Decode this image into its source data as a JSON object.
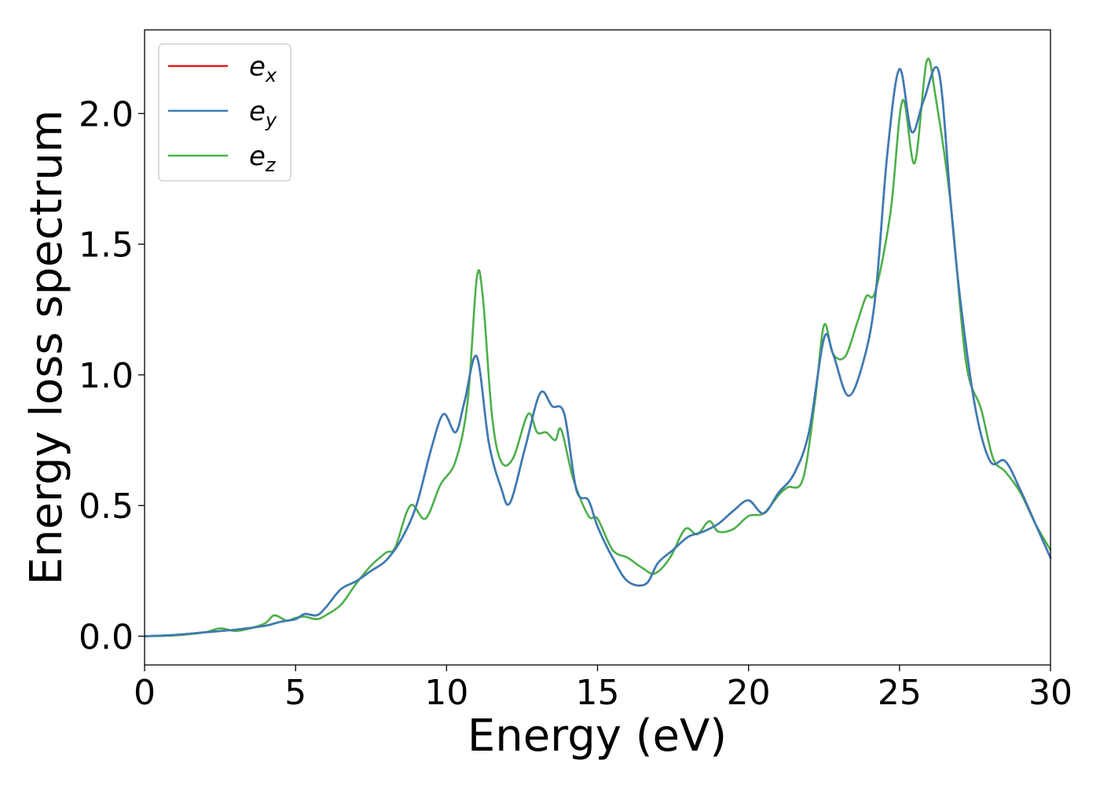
{
  "chart_data": {
    "type": "line",
    "xlabel": "Energy (eV)",
    "ylabel": "Energy loss spectrum",
    "xlim": [
      0,
      30
    ],
    "ylim": [
      -0.11,
      2.32
    ],
    "xticks": [
      0,
      5,
      10,
      15,
      20,
      25,
      30
    ],
    "xtick_labels": [
      "0",
      "5",
      "10",
      "15",
      "20",
      "25",
      "30"
    ],
    "yticks": [
      0.0,
      0.5,
      1.0,
      1.5,
      2.0
    ],
    "ytick_labels": [
      "0.0",
      "0.5",
      "1.0",
      "1.5",
      "2.0"
    ],
    "grid": false,
    "legend_position": "top-left",
    "series": [
      {
        "name": "e_x",
        "legend_main": "e",
        "legend_sub": "x",
        "color": "#e41a1c",
        "x": [
          0,
          1,
          2,
          3,
          4,
          4.5,
          5,
          5.3,
          5.7,
          6,
          6.5,
          7,
          7.5,
          8,
          8.5,
          9,
          9.5,
          9.9,
          10.3,
          10.6,
          11,
          11.4,
          11.8,
          12.1,
          12.6,
          13.1,
          13.5,
          13.9,
          14.3,
          14.7,
          15,
          15.5,
          16,
          16.6,
          17,
          17.5,
          18,
          18.5,
          19,
          19.5,
          20,
          20.5,
          21,
          21.5,
          22,
          22.5,
          22.8,
          23.3,
          23.8,
          24.2,
          24.6,
          25,
          25.4,
          25.8,
          26.3,
          26.7,
          27,
          27.5,
          28,
          28.5,
          29,
          29.5,
          30
        ],
        "y": [
          0,
          0.005,
          0.015,
          0.025,
          0.04,
          0.055,
          0.065,
          0.085,
          0.08,
          0.11,
          0.18,
          0.21,
          0.25,
          0.29,
          0.37,
          0.5,
          0.72,
          0.85,
          0.78,
          0.9,
          1.07,
          0.74,
          0.57,
          0.51,
          0.72,
          0.93,
          0.88,
          0.85,
          0.56,
          0.52,
          0.42,
          0.3,
          0.21,
          0.2,
          0.28,
          0.33,
          0.38,
          0.4,
          0.43,
          0.48,
          0.52,
          0.47,
          0.55,
          0.62,
          0.78,
          1.14,
          1.08,
          0.92,
          1.05,
          1.3,
          1.85,
          2.17,
          1.93,
          2.05,
          2.16,
          1.65,
          1.3,
          0.88,
          0.67,
          0.67,
          0.56,
          0.43,
          0.3
        ]
      },
      {
        "name": "e_y",
        "legend_main": "e",
        "legend_sub": "y",
        "color": "#377eb8",
        "x": [
          0,
          1,
          2,
          3,
          4,
          4.5,
          5,
          5.3,
          5.7,
          6,
          6.5,
          7,
          7.5,
          8,
          8.5,
          9,
          9.5,
          9.9,
          10.3,
          10.6,
          11,
          11.4,
          11.8,
          12.1,
          12.6,
          13.1,
          13.5,
          13.9,
          14.3,
          14.7,
          15,
          15.5,
          16,
          16.6,
          17,
          17.5,
          18,
          18.5,
          19,
          19.5,
          20,
          20.5,
          21,
          21.5,
          22,
          22.5,
          22.8,
          23.3,
          23.8,
          24.2,
          24.6,
          25,
          25.4,
          25.8,
          26.3,
          26.7,
          27,
          27.5,
          28,
          28.5,
          29,
          29.5,
          30
        ],
        "y": [
          0,
          0.005,
          0.015,
          0.025,
          0.04,
          0.055,
          0.065,
          0.085,
          0.08,
          0.11,
          0.18,
          0.21,
          0.25,
          0.29,
          0.37,
          0.5,
          0.72,
          0.85,
          0.78,
          0.9,
          1.07,
          0.74,
          0.57,
          0.51,
          0.72,
          0.93,
          0.88,
          0.85,
          0.56,
          0.52,
          0.42,
          0.3,
          0.21,
          0.2,
          0.28,
          0.33,
          0.38,
          0.4,
          0.43,
          0.48,
          0.52,
          0.47,
          0.55,
          0.62,
          0.78,
          1.14,
          1.08,
          0.92,
          1.05,
          1.3,
          1.85,
          2.17,
          1.93,
          2.05,
          2.16,
          1.65,
          1.3,
          0.88,
          0.67,
          0.67,
          0.56,
          0.43,
          0.3
        ]
      },
      {
        "name": "e_z",
        "legend_main": "e",
        "legend_sub": "z",
        "color": "#4daf4a",
        "x": [
          0,
          1,
          2,
          2.5,
          3,
          3.5,
          4,
          4.3,
          4.7,
          5,
          5.3,
          5.7,
          6,
          6.5,
          7,
          7.5,
          8,
          8.3,
          8.8,
          9.3,
          9.8,
          10.3,
          10.7,
          11,
          11.2,
          11.5,
          11.8,
          12.2,
          12.7,
          13,
          13.3,
          13.6,
          13.8,
          14.2,
          14.7,
          15,
          15.5,
          16,
          16.5,
          16.9,
          17.4,
          17.9,
          18.3,
          18.7,
          19,
          19.5,
          20,
          20.5,
          21,
          21.3,
          21.8,
          22.2,
          22.5,
          22.8,
          23.2,
          23.6,
          23.9,
          24.2,
          24.7,
          25.1,
          25.5,
          25.9,
          26.2,
          26.7,
          27.2,
          27.7,
          28.1,
          28.5,
          29,
          29.5,
          30
        ],
        "y": [
          0,
          0.003,
          0.015,
          0.03,
          0.02,
          0.03,
          0.05,
          0.08,
          0.06,
          0.07,
          0.075,
          0.065,
          0.08,
          0.12,
          0.2,
          0.27,
          0.32,
          0.34,
          0.5,
          0.45,
          0.58,
          0.67,
          0.9,
          1.37,
          1.3,
          0.85,
          0.67,
          0.68,
          0.85,
          0.78,
          0.78,
          0.75,
          0.79,
          0.6,
          0.46,
          0.45,
          0.33,
          0.3,
          0.26,
          0.24,
          0.3,
          0.41,
          0.39,
          0.44,
          0.4,
          0.41,
          0.46,
          0.47,
          0.54,
          0.57,
          0.6,
          0.9,
          1.19,
          1.08,
          1.07,
          1.2,
          1.3,
          1.32,
          1.62,
          2.05,
          1.81,
          2.2,
          2.06,
          1.65,
          1.05,
          0.87,
          0.68,
          0.63,
          0.55,
          0.43,
          0.33
        ]
      }
    ]
  }
}
